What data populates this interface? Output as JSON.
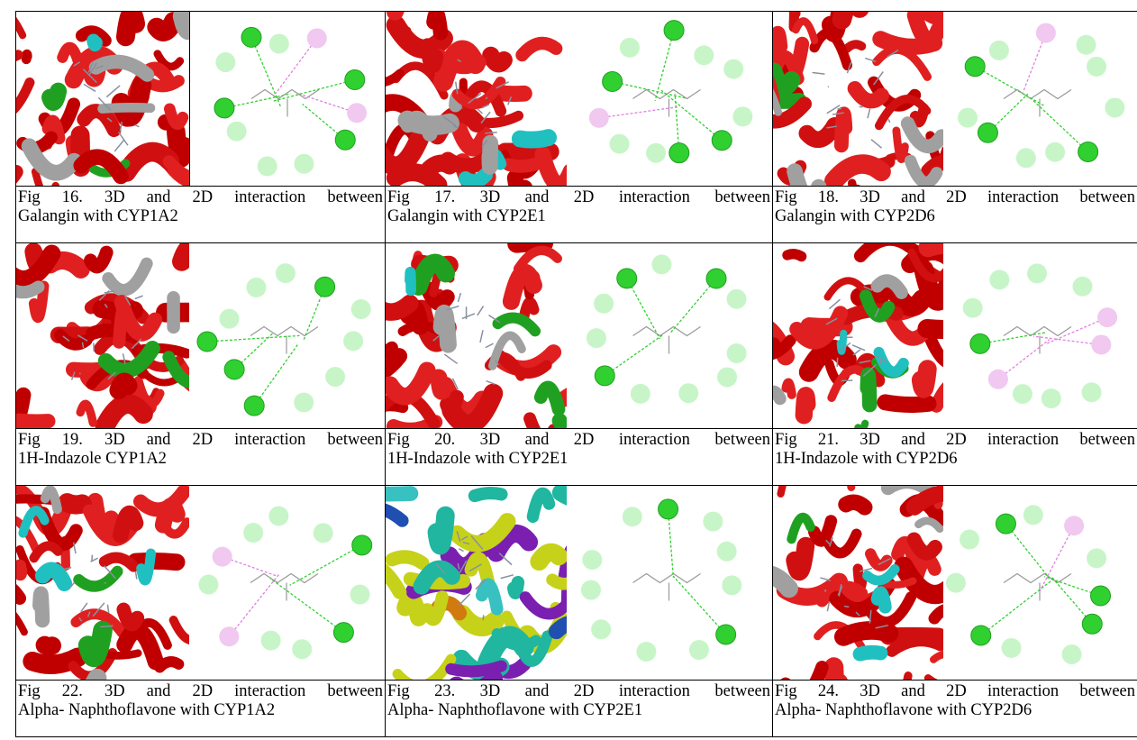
{
  "figures": [
    [
      {
        "caption": [
          "Fig 16. 3D and 2D interaction between",
          "Galangin with CYP1A2"
        ]
      },
      {
        "caption": [
          "Fig 17. 3D and 2D interaction between",
          "Galangin with CYP2E1"
        ]
      },
      {
        "caption": [
          "Fig 18. 3D and 2D interaction between",
          "Galangin with CYP2D6"
        ]
      }
    ],
    [
      {
        "caption": [
          "Fig 19. 3D and 2D interaction between",
          "1H-Indazole CYP1A2"
        ]
      },
      {
        "caption": [
          "Fig 20. 3D and 2D interaction between",
          "1H-Indazole with CYP2E1"
        ]
      },
      {
        "caption": [
          "Fig 21. 3D and 2D interaction between",
          "1H-Indazole with CYP2D6"
        ]
      }
    ],
    [
      {
        "caption": [
          "Fig 22. 3D and 2D interaction between",
          "Alpha- Naphthoflavone with CYP1A2"
        ]
      },
      {
        "caption": [
          "Fig 23. 3D and 2D interaction between",
          "Alpha- Naphthoflavone with CYP2E1"
        ]
      },
      {
        "caption": [
          "Fig 24. 3D and 2D interaction between",
          "Alpha- Naphthoflavone with CYP2D6"
        ]
      }
    ]
  ]
}
